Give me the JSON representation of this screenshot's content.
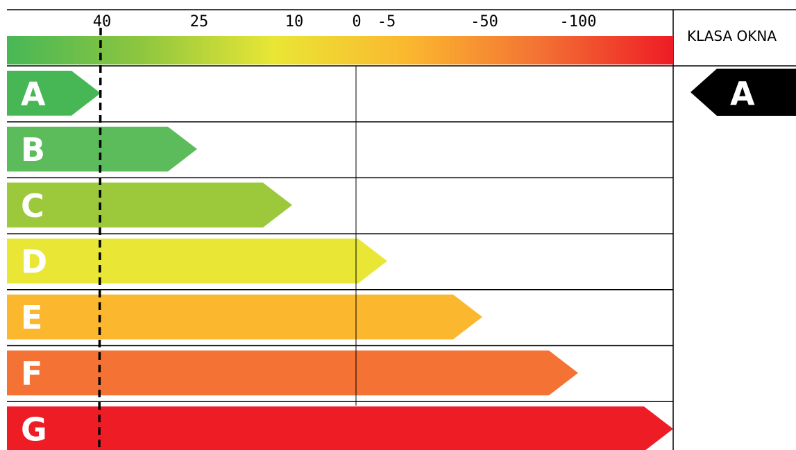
{
  "chart_data": {
    "type": "energy-rating",
    "scale_ticks": [
      "40",
      "25",
      "10",
      "0",
      "-5",
      "-50",
      "-100"
    ],
    "classes": [
      {
        "label": "A",
        "color": "#47b756"
      },
      {
        "label": "B",
        "color": "#5cbb5a"
      },
      {
        "label": "C",
        "color": "#9cc93b"
      },
      {
        "label": "D",
        "color": "#e9e635"
      },
      {
        "label": "E",
        "color": "#fbb82f"
      },
      {
        "label": "F",
        "color": "#f37234"
      },
      {
        "label": "G",
        "color": "#ee1c25"
      }
    ],
    "marker_value": "40",
    "gradient_colors": [
      "#47b756",
      "#8dc63f",
      "#e9e635",
      "#fbb82f",
      "#f37234",
      "#ee1c25"
    ],
    "panel": {
      "title": "KLASA OKNA",
      "rating": "A"
    }
  }
}
